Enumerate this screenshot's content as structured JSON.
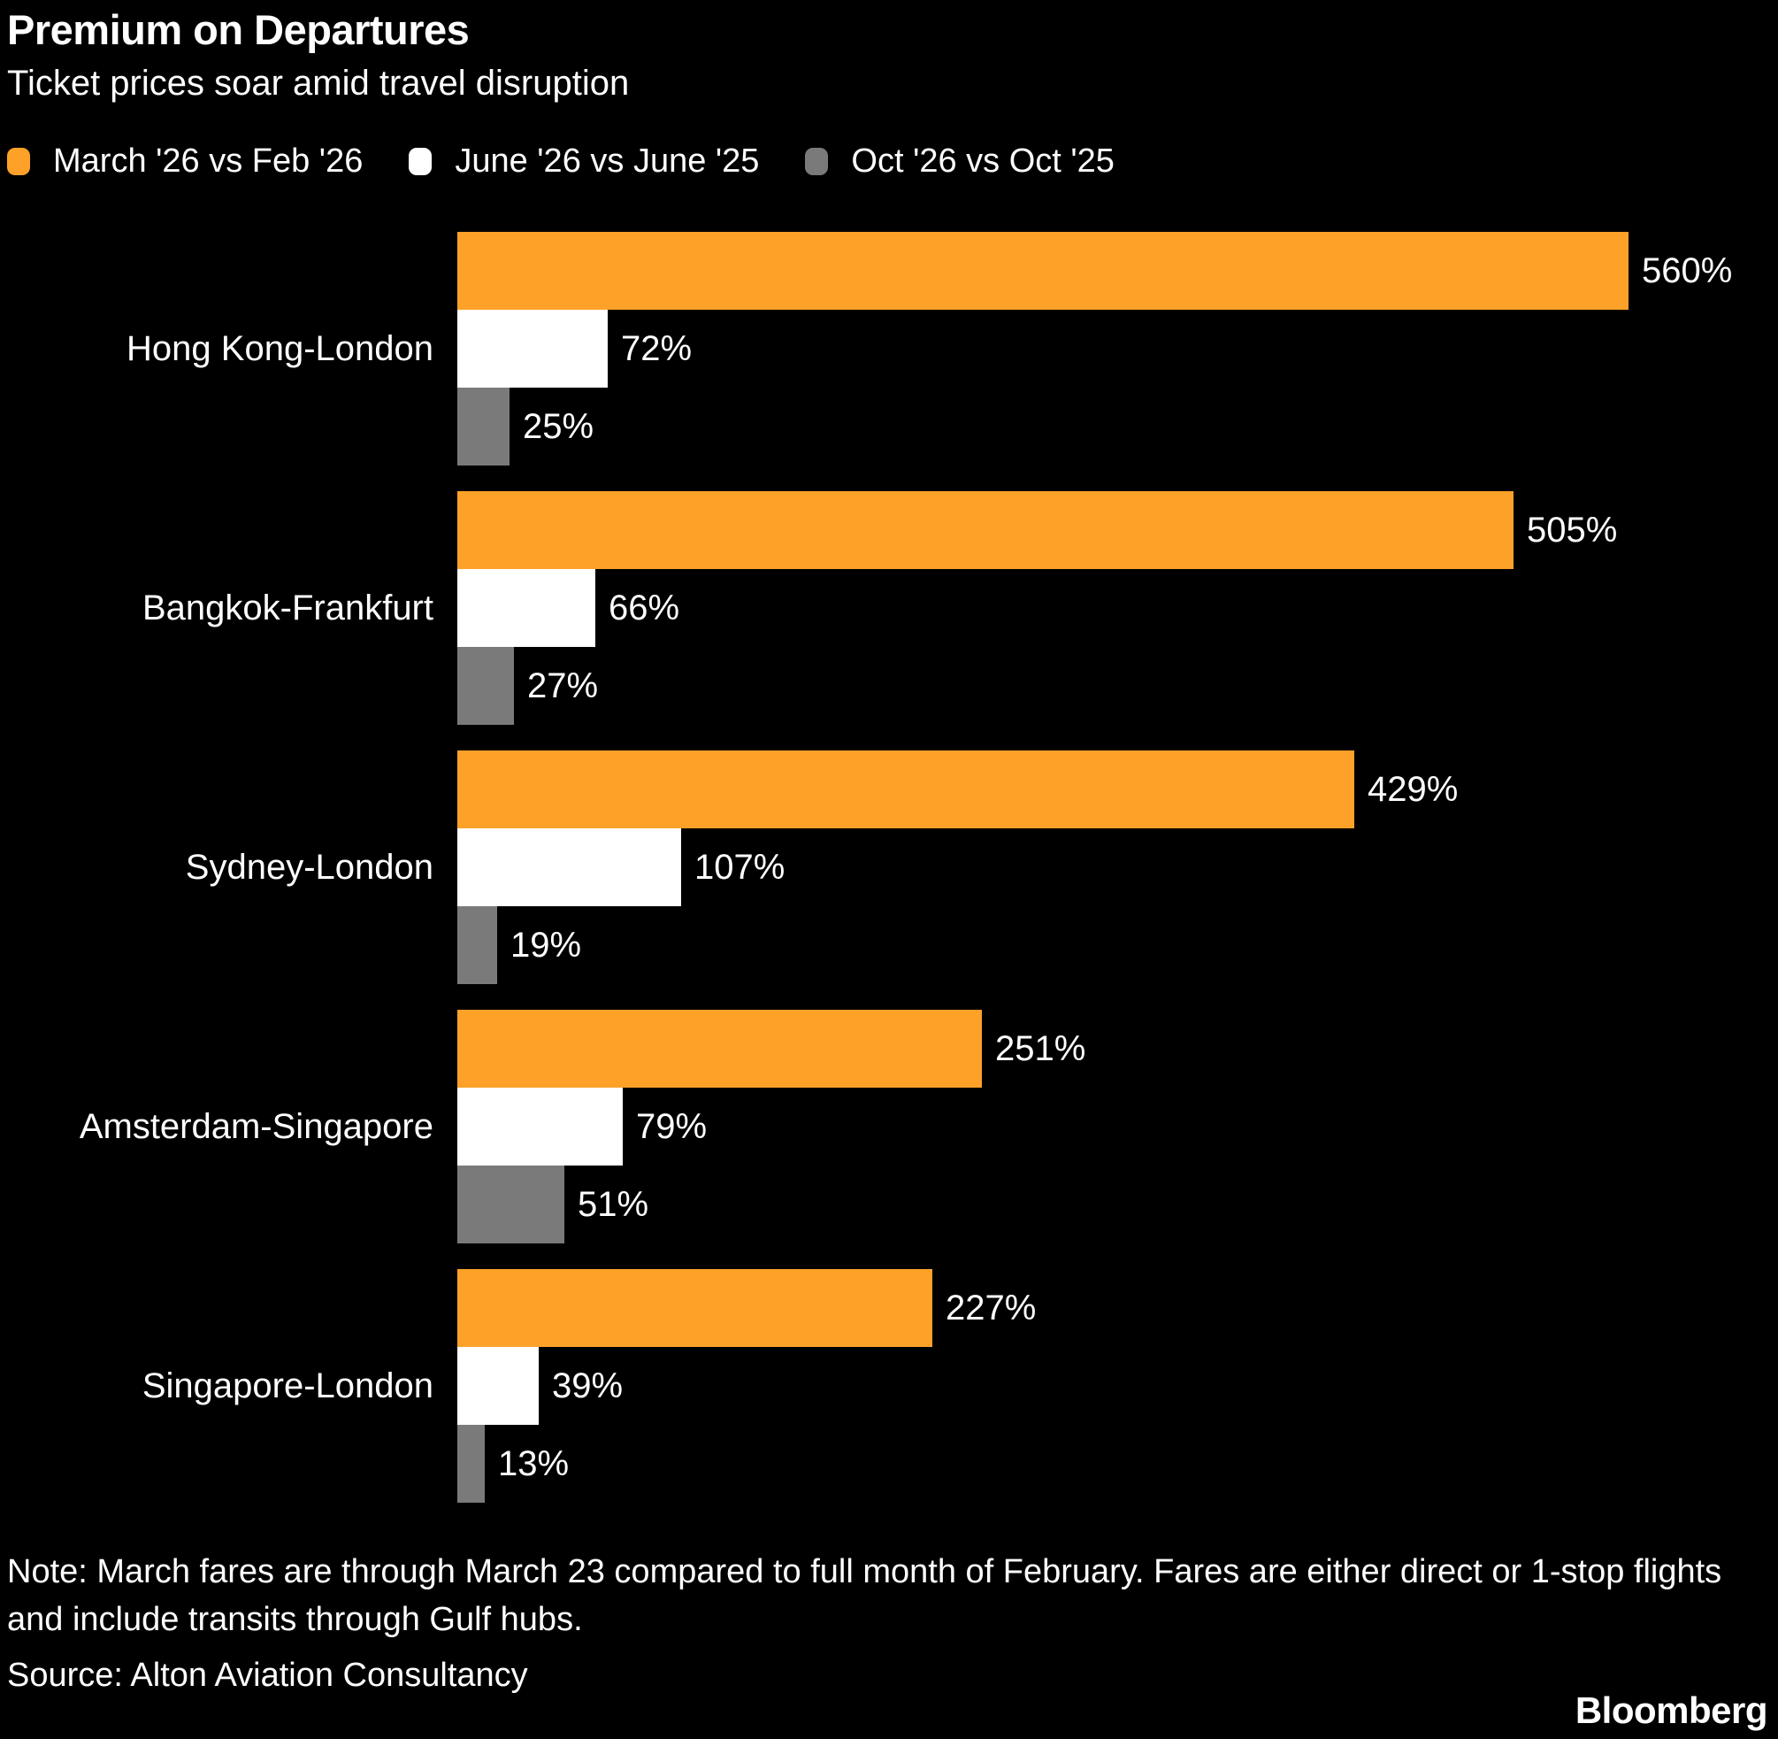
{
  "header": {
    "title": "Premium on Departures",
    "subtitle": "Ticket prices soar amid travel disruption"
  },
  "legend": [
    {
      "label": "March '26 vs Feb '26",
      "color": "#FDA129"
    },
    {
      "label": "June '26 vs June '25",
      "color": "#FFFFFF"
    },
    {
      "label": "Oct '26 vs Oct '25",
      "color": "#7A7A7A"
    }
  ],
  "chart_data": {
    "type": "bar",
    "orientation": "horizontal",
    "title": "Premium on Departures",
    "subtitle": "Ticket prices soar amid travel disruption",
    "categories": [
      "Hong Kong-London",
      "Bangkok-Frankfurt",
      "Sydney-London",
      "Amsterdam-Singapore",
      "Singapore-London"
    ],
    "series": [
      {
        "name": "March '26 vs Feb '26",
        "color": "#FDA129",
        "values": [
          560,
          505,
          429,
          251,
          227
        ]
      },
      {
        "name": "June '26 vs June '25",
        "color": "#FFFFFF",
        "values": [
          72,
          66,
          107,
          79,
          39
        ]
      },
      {
        "name": "Oct '26 vs Oct '25",
        "color": "#7A7A7A",
        "values": [
          25,
          27,
          19,
          51,
          13
        ]
      }
    ],
    "value_suffix": "%",
    "xlim": [
      0,
      600
    ],
    "grid": false,
    "legend_position": "top"
  },
  "footer": {
    "note": "Note: March fares are through March 23 compared to full month of February. Fares are either direct or 1-stop flights and include transits through Gulf hubs.",
    "source": "Source: Alton Aviation Consultancy",
    "brand": "Bloomberg"
  }
}
